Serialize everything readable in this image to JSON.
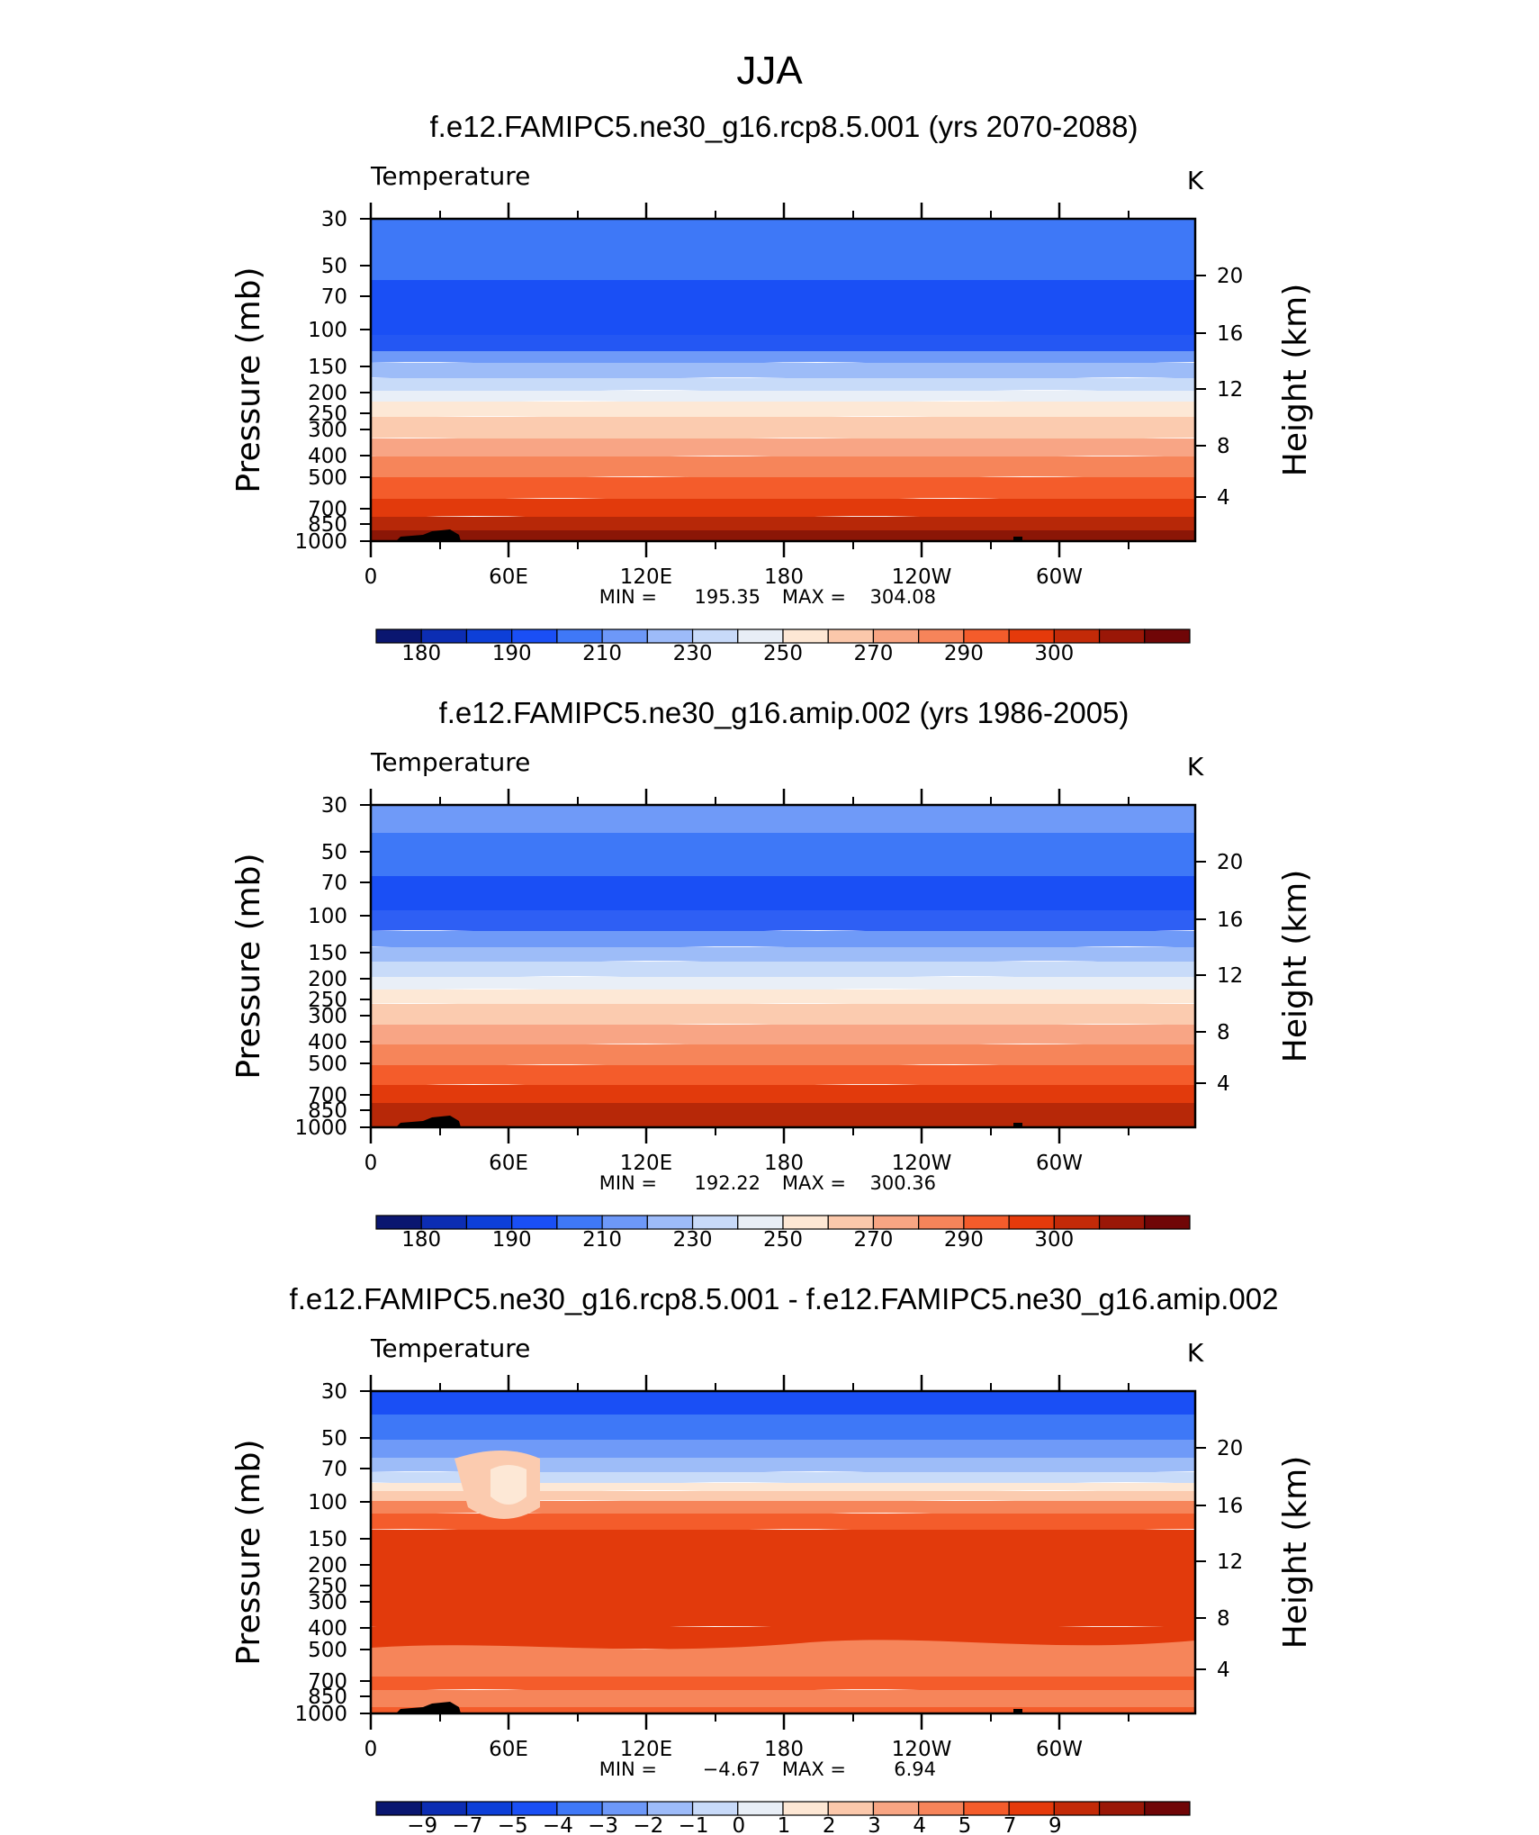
{
  "figure_title": "JJA",
  "chart_data": [
    {
      "type": "contour",
      "title": "f.e12.FAMIPC5.ne30_g16.rcp8.5.001 (yrs 2070-2088)",
      "variable": "Temperature",
      "units": "K",
      "ylabel_left": "Pressure (mb)",
      "ylabel_right": "Height (km)",
      "x_ticks": [
        "0",
        "60E",
        "120E",
        "180",
        "120W",
        "60W"
      ],
      "y_ticks": [
        "30",
        "50",
        "70",
        "100",
        "150",
        "200",
        "250",
        "300",
        "400",
        "500",
        "700",
        "850",
        "1000"
      ],
      "height_ticks": [
        "20",
        "16",
        "12",
        "8",
        "4"
      ],
      "min_label": "MIN",
      "min": "195.35",
      "max_label": "MAX",
      "max": "304.08",
      "colorbar_labels": [
        "180",
        "190",
        "210",
        "230",
        "250",
        "270",
        "290",
        "300"
      ],
      "colors": [
        "#0a1670",
        "#0c2db3",
        "#0d3fd8",
        "#1a4ff5",
        "#3f78f7",
        "#6d98f8",
        "#9dbbf9",
        "#c8daf9",
        "#e8eef6",
        "#fde7d4",
        "#fbc8ab",
        "#f8a583",
        "#f6845a",
        "#f45c2b",
        "#e53a0b",
        "#c32a08",
        "#9a1707",
        "#700607"
      ],
      "band_colors": [
        "#3e78f7",
        "#1a4ff5",
        "#2457f3",
        "#6f9af8",
        "#9dbcf8",
        "#c8dbf9",
        "#e9eff7",
        "#fde8d6",
        "#fbcbaf",
        "#f8a585",
        "#f6855a",
        "#f45c2b",
        "#e23a0c",
        "#b72808",
        "#8b1606"
      ]
    },
    {
      "type": "contour",
      "title": "f.e12.FAMIPC5.ne30_g16.amip.002 (yrs 1986-2005)",
      "variable": "Temperature",
      "units": "K",
      "ylabel_left": "Pressure (mb)",
      "ylabel_right": "Height (km)",
      "x_ticks": [
        "0",
        "60E",
        "120E",
        "180",
        "120W",
        "60W"
      ],
      "y_ticks": [
        "30",
        "50",
        "70",
        "100",
        "150",
        "200",
        "250",
        "300",
        "400",
        "500",
        "700",
        "850",
        "1000"
      ],
      "height_ticks": [
        "20",
        "16",
        "12",
        "8",
        "4"
      ],
      "min_label": "MIN",
      "min": "192.22",
      "max_label": "MAX",
      "max": "300.36",
      "colorbar_labels": [
        "180",
        "190",
        "210",
        "230",
        "250",
        "270",
        "290",
        "300"
      ],
      "colors": [
        "#0a1670",
        "#0c2db3",
        "#0d3fd8",
        "#1a4ff5",
        "#3f78f7",
        "#6d98f8",
        "#9dbbf9",
        "#c8daf9",
        "#e8eef6",
        "#fde7d4",
        "#fbc8ab",
        "#f8a583",
        "#f6845a",
        "#f45c2b",
        "#e53a0b",
        "#c32a08",
        "#9a1707",
        "#700607"
      ],
      "band_colors": [
        "#6f9af8",
        "#3e78f7",
        "#1a4ff5",
        "#2e5ff4",
        "#6f9af8",
        "#9dbcf8",
        "#c8dbf9",
        "#e9eff7",
        "#fde8d6",
        "#fbcbaf",
        "#f8a585",
        "#f6855a",
        "#f45c2b",
        "#e23a0c",
        "#b72808"
      ]
    },
    {
      "type": "contour",
      "title": "f.e12.FAMIPC5.ne30_g16.rcp8.5.001 - f.e12.FAMIPC5.ne30_g16.amip.002",
      "variable": "Temperature",
      "units": "K",
      "ylabel_left": "Pressure (mb)",
      "ylabel_right": "Height (km)",
      "x_ticks": [
        "0",
        "60E",
        "120E",
        "180",
        "120W",
        "60W"
      ],
      "y_ticks": [
        "30",
        "50",
        "70",
        "100",
        "150",
        "200",
        "250",
        "300",
        "400",
        "500",
        "700",
        "850",
        "1000"
      ],
      "height_ticks": [
        "20",
        "16",
        "12",
        "8",
        "4"
      ],
      "min_label": "MIN",
      "min": "−4.67",
      "max_label": "MAX",
      "max": "6.94",
      "colorbar_labels": [
        "−9",
        "−7",
        "−5",
        "−4",
        "−3",
        "−2",
        "−1",
        "0",
        "1",
        "2",
        "3",
        "4",
        "5",
        "7",
        "9"
      ],
      "colors": [
        "#0a1670",
        "#0c2db3",
        "#0d3fd8",
        "#1a4ff5",
        "#3f78f7",
        "#6d98f8",
        "#9dbbf9",
        "#c8daf9",
        "#e8eef6",
        "#fde7d4",
        "#fbc8ab",
        "#f8a583",
        "#f6845a",
        "#f45c2b",
        "#e53a0b",
        "#c32a08",
        "#9a1707",
        "#700607"
      ],
      "band_colors": [
        "#1a4ff5",
        "#3e78f7",
        "#6f9af8",
        "#9dbcf8",
        "#c8dbf9",
        "#fde8d6",
        "#fbcbaf",
        "#f6855a",
        "#f45c2b",
        "#e23a0c",
        "#e23a0c",
        "#e23a0c",
        "#f45c2b",
        "#f6855a",
        "#f45c2b"
      ]
    }
  ]
}
